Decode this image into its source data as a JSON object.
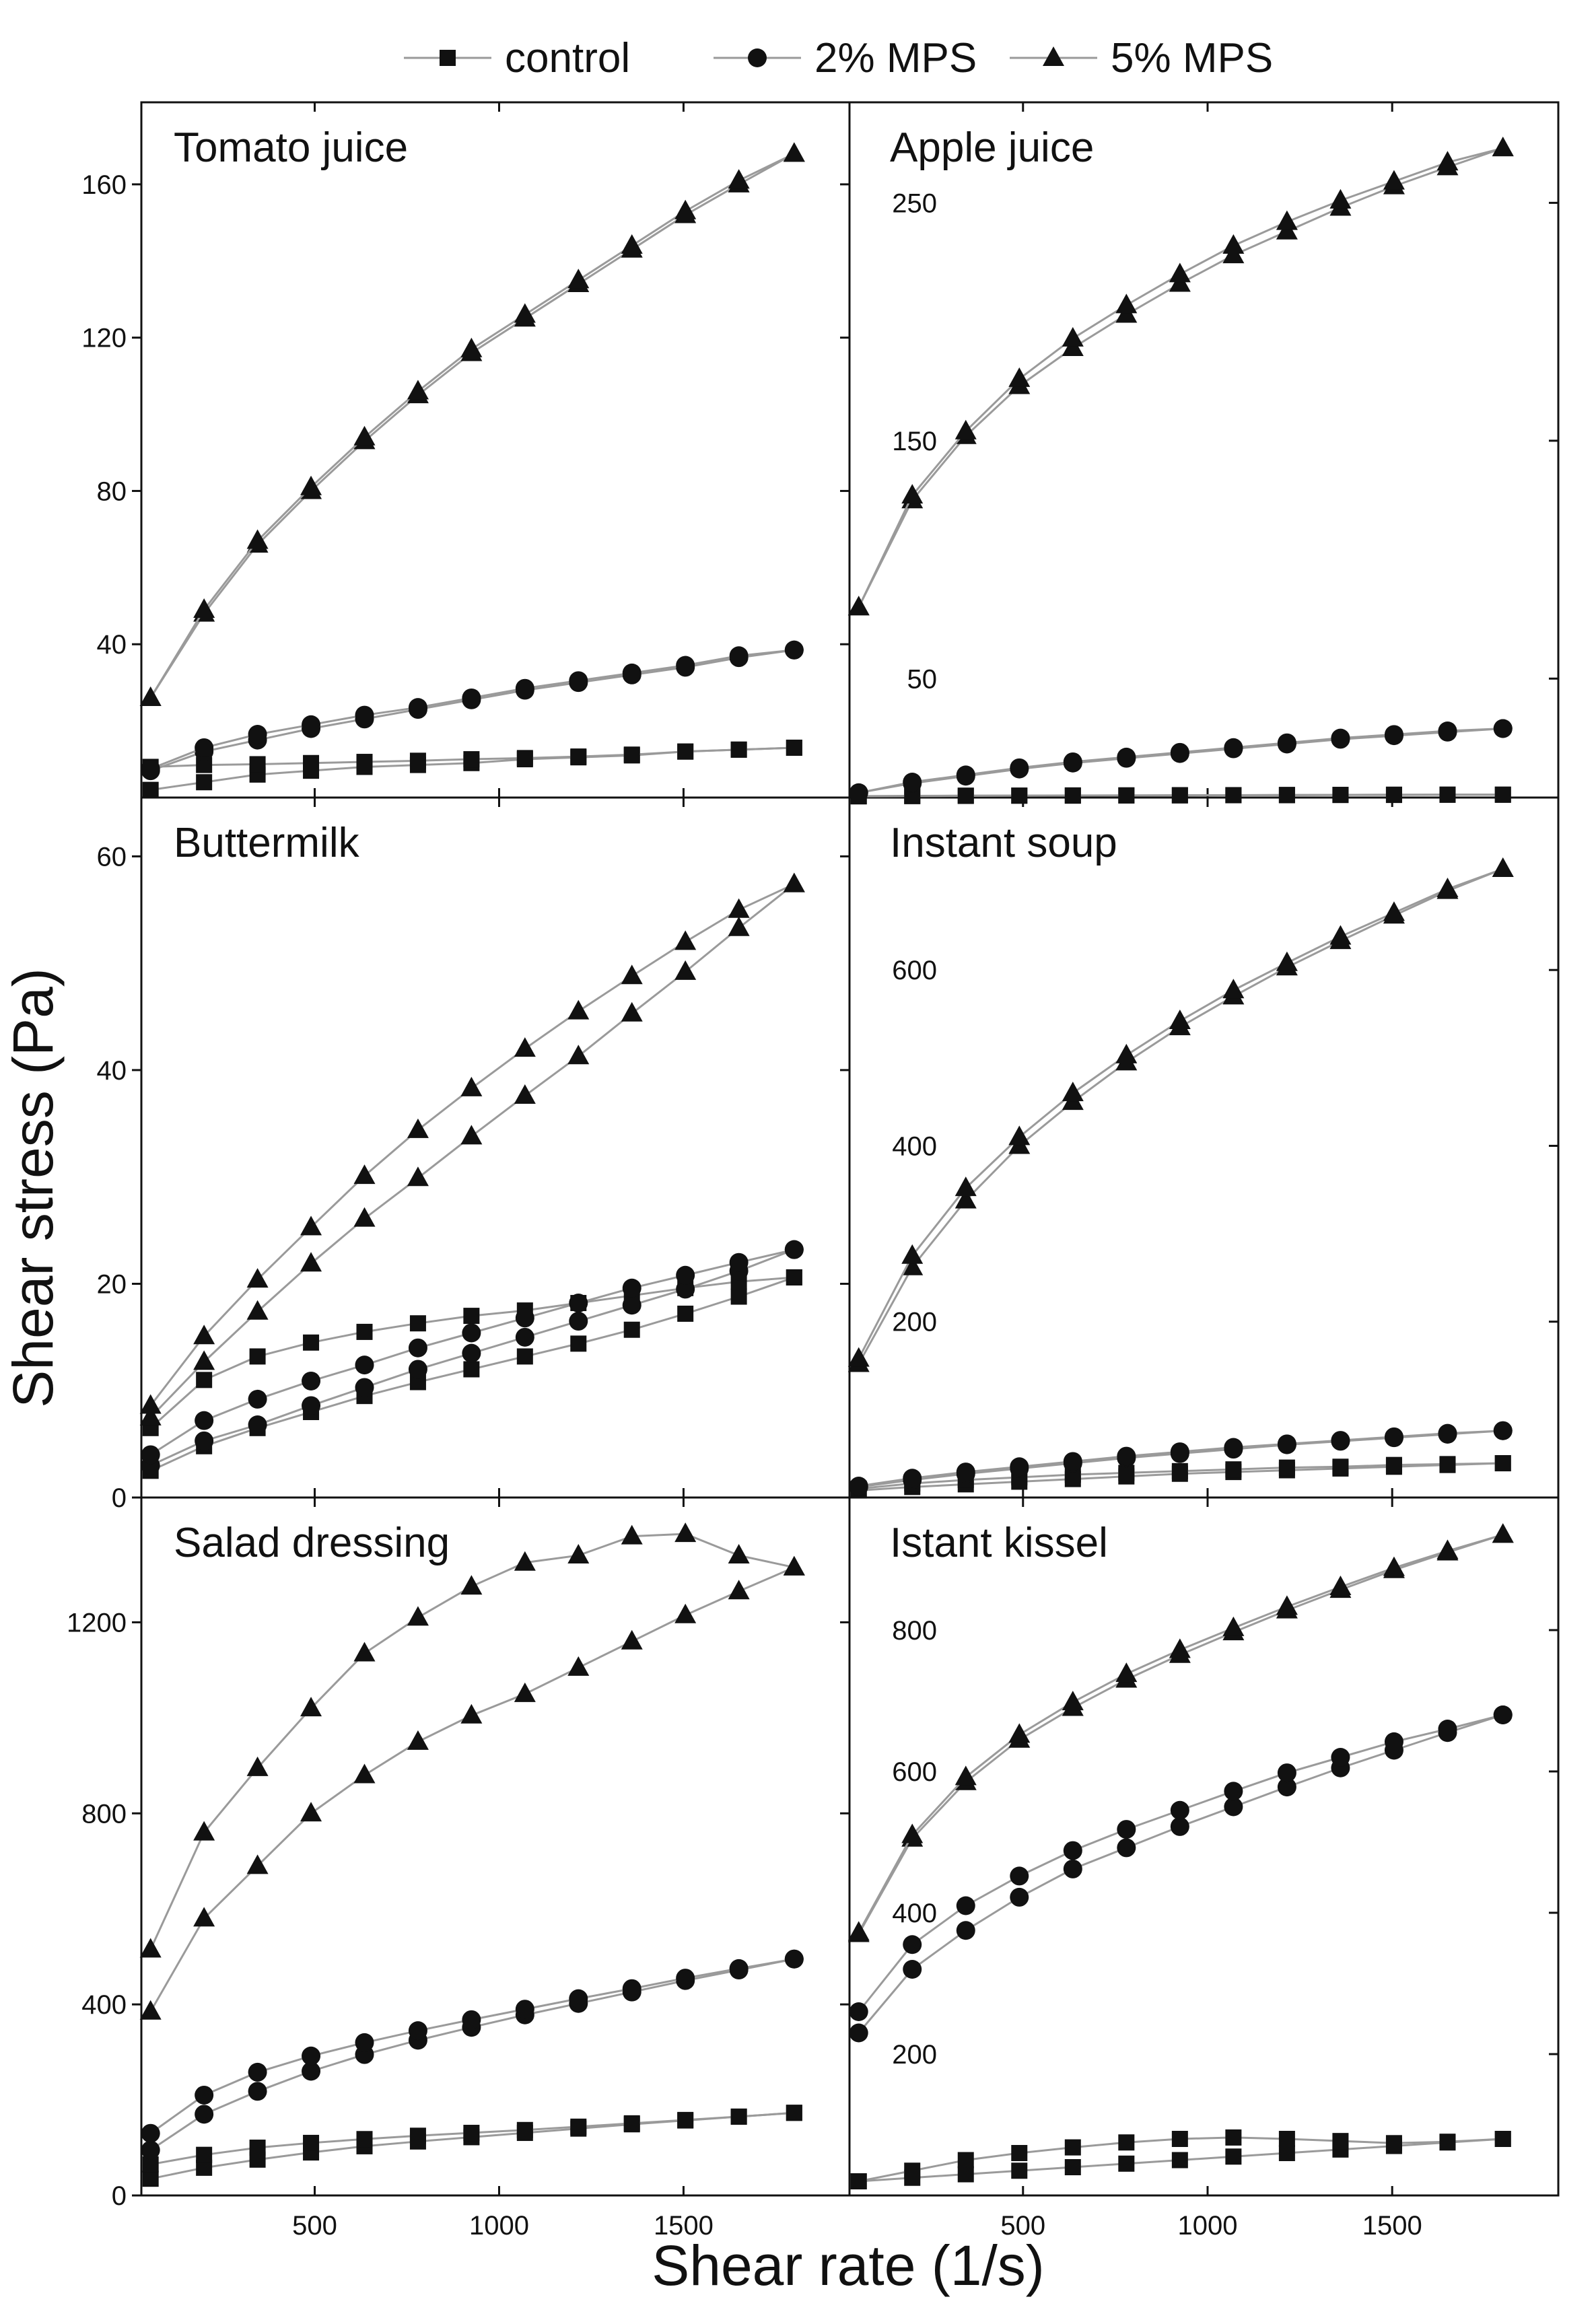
{
  "colors": {
    "ink": "#111111",
    "line": "#9a9a9a",
    "background": "#ffffff"
  },
  "chart_data": {
    "type": "line",
    "title": "",
    "xlabel": "Shear rate (1/s)",
    "ylabel": "Shear stress (Pa)",
    "legend": {
      "position": "top",
      "entries": [
        {
          "label": "control",
          "marker": "square"
        },
        {
          "label": "2% MPS",
          "marker": "circle"
        },
        {
          "label": "5% MPS",
          "marker": "triangle"
        }
      ]
    },
    "x_ticks": [
      500,
      1000,
      1500
    ],
    "x_tick_labels": [
      "500",
      "1000",
      "1500"
    ],
    "panels": [
      {
        "title": "Tomato juice",
        "xlim": [
          30,
          1950
        ],
        "ylim": [
          0,
          180
        ],
        "y_ticks": [
          40,
          80,
          120,
          160
        ],
        "y_tick_labels": [
          "40",
          "80",
          "120",
          "160"
        ],
        "series": [
          {
            "name": "control",
            "marker": "square",
            "x": [
              55,
              200,
              345,
              490,
              635,
              780,
              925,
              1070,
              1215,
              1360,
              1505,
              1650,
              1800
            ],
            "up": [
              2,
              4,
              6,
              7,
              8,
              8.5,
              9,
              10,
              10.5,
              11,
              12,
              12.5,
              13
            ],
            "down": [
              8,
              8.5,
              8.7,
              9,
              9.3,
              9.6,
              10,
              10.3,
              10.7,
              11.2,
              12,
              12.5,
              13
            ]
          },
          {
            "name": "2% MPS",
            "marker": "circle",
            "x": [
              55,
              200,
              345,
              490,
              635,
              780,
              925,
              1070,
              1215,
              1360,
              1505,
              1650,
              1800
            ],
            "up": [
              7,
              12,
              15,
              18,
              20.5,
              23,
              25.5,
              28,
              30,
              32,
              34,
              36.5,
              38.5
            ],
            "down": [
              7.5,
              13,
              16.5,
              19,
              21.5,
              23.5,
              26,
              28.5,
              30.5,
              32.5,
              34.5,
              37,
              38.5
            ]
          },
          {
            "name": "5% MPS",
            "marker": "triangle",
            "x": [
              55,
              200,
              345,
              490,
              635,
              780,
              925,
              1070,
              1215,
              1360,
              1505,
              1650,
              1800
            ],
            "up": [
              26,
              48,
              66,
              80,
              93,
              105,
              116,
              125,
              134,
              143,
              152,
              160,
              168
            ],
            "down": [
              26,
              49,
              67,
              81,
              94,
              106,
              117,
              126,
              135,
              144,
              153,
              161,
              168
            ]
          }
        ]
      },
      {
        "title": "Apple juice",
        "xlim": [
          30,
          1950
        ],
        "ylim": [
          0,
          290
        ],
        "y_ticks": [
          50,
          150,
          250
        ],
        "y_tick_labels": [
          "50",
          "150",
          "250"
        ],
        "series": [
          {
            "name": "control",
            "marker": "square",
            "x": [
              55,
              200,
              345,
              490,
              635,
              780,
              925,
              1070,
              1215,
              1360,
              1505,
              1650,
              1800
            ],
            "up": [
              0.5,
              0.6,
              0.7,
              0.8,
              0.8,
              0.9,
              0.9,
              1,
              1,
              1.1,
              1.1,
              1.2,
              1.2
            ],
            "down": [
              0.6,
              0.7,
              0.8,
              0.8,
              0.9,
              0.9,
              1,
              1,
              1.1,
              1.1,
              1.2,
              1.2,
              1.2
            ]
          },
          {
            "name": "2% MPS",
            "marker": "circle",
            "x": [
              55,
              200,
              345,
              490,
              635,
              780,
              925,
              1070,
              1215,
              1360,
              1505,
              1650,
              1800
            ],
            "up": [
              2,
              6,
              9,
              12,
              14.5,
              16.5,
              18.5,
              20.5,
              22.5,
              24.5,
              26,
              27.5,
              29
            ],
            "down": [
              2,
              6.5,
              9.5,
              12.5,
              15,
              17,
              19,
              21,
              23,
              25,
              26.5,
              28,
              29
            ]
          },
          {
            "name": "5% MPS",
            "marker": "triangle",
            "x": [
              55,
              200,
              345,
              490,
              635,
              780,
              925,
              1070,
              1215,
              1360,
              1505,
              1650,
              1800
            ],
            "up": [
              80,
              125,
              152,
              173,
              189,
              203,
              216,
              228,
              238,
              248,
              257,
              265,
              273
            ],
            "down": [
              80,
              127,
              154,
              176,
              193,
              207,
              220,
              232,
              242,
              251,
              259,
              267,
              273
            ]
          }
        ]
      },
      {
        "title": "Buttermilk",
        "xlim": [
          30,
          1950
        ],
        "ylim": [
          0,
          65
        ],
        "y_ticks": [
          0,
          20,
          40,
          60
        ],
        "y_tick_labels": [
          "0",
          "20",
          "40",
          "60"
        ],
        "series": [
          {
            "name": "control",
            "marker": "square",
            "x": [
              55,
              200,
              345,
              490,
              635,
              780,
              925,
              1070,
              1215,
              1360,
              1505,
              1650,
              1800
            ],
            "up": [
              2.5,
              4.8,
              6.5,
              8,
              9.5,
              10.8,
              12,
              13.2,
              14.4,
              15.7,
              17.2,
              18.8,
              20.6
            ],
            "down": [
              6.5,
              11,
              13.2,
              14.5,
              15.5,
              16.3,
              17,
              17.5,
              18.2,
              18.9,
              19.6,
              20.2,
              20.6
            ]
          },
          {
            "name": "2% MPS",
            "marker": "circle",
            "x": [
              55,
              200,
              345,
              490,
              635,
              780,
              925,
              1070,
              1215,
              1360,
              1505,
              1650,
              1800
            ],
            "up": [
              3,
              5.3,
              6.8,
              8.6,
              10.3,
              12,
              13.5,
              15,
              16.5,
              18,
              19.5,
              21.2,
              23.2
            ],
            "down": [
              4,
              7.2,
              9.2,
              10.9,
              12.4,
              14,
              15.4,
              16.8,
              18.2,
              19.6,
              20.8,
              22,
              23.2
            ]
          },
          {
            "name": "5% MPS",
            "marker": "triangle",
            "x": [
              55,
              200,
              345,
              490,
              635,
              780,
              925,
              1070,
              1215,
              1360,
              1505,
              1650,
              1800
            ],
            "up": [
              7.5,
              12.7,
              17.4,
              21.9,
              26.1,
              29.9,
              33.8,
              37.6,
              41.3,
              45.3,
              49.2,
              53.3,
              57.4
            ],
            "down": [
              8.6,
              15.1,
              20.4,
              25.3,
              30.1,
              34.4,
              38.3,
              42.0,
              45.5,
              48.8,
              52.0,
              55.0,
              57.4
            ]
          }
        ]
      },
      {
        "title": "Instant soup",
        "xlim": [
          30,
          1950
        ],
        "ylim": [
          0,
          790
        ],
        "y_ticks": [
          200,
          400,
          600
        ],
        "y_tick_labels": [
          "200",
          "400",
          "600"
        ],
        "series": [
          {
            "name": "control",
            "marker": "square",
            "x": [
              55,
              200,
              345,
              490,
              635,
              780,
              925,
              1070,
              1215,
              1360,
              1505,
              1650,
              1800
            ],
            "up": [
              8,
              12,
              15,
              18,
              21,
              24,
              27,
              29,
              31,
              33,
              35,
              37,
              39
            ],
            "down": [
              10,
              16,
              20,
              23,
              26,
              28,
              30,
              32,
              34,
              35,
              37,
              38,
              39
            ]
          },
          {
            "name": "2% MPS",
            "marker": "circle",
            "x": [
              55,
              200,
              345,
              490,
              635,
              780,
              925,
              1070,
              1215,
              1360,
              1505,
              1650,
              1800
            ],
            "up": [
              12,
              20,
              27,
              33,
              39,
              45,
              50,
              55,
              60,
              64,
              68,
              72,
              76
            ],
            "down": [
              13,
              22,
              29,
              35,
              41,
              47,
              52,
              57,
              61,
              65,
              69,
              73,
              76
            ]
          },
          {
            "name": "5% MPS",
            "marker": "triangle",
            "x": [
              55,
              200,
              345,
              490,
              635,
              780,
              925,
              1070,
              1215,
              1360,
              1505,
              1650,
              1800
            ],
            "up": [
              152,
              262,
              338,
              400,
              450,
              495,
              535,
              570,
              603,
              633,
              662,
              690,
              715
            ],
            "down": [
              158,
              275,
              352,
              410,
              460,
              503,
              542,
              577,
              608,
              638,
              665,
              692,
              715
            ]
          }
        ]
      },
      {
        "title": "Salad dressing",
        "xlim": [
          30,
          1950
        ],
        "ylim": [
          0,
          1450
        ],
        "y_ticks": [
          0,
          400,
          800,
          1200
        ],
        "y_tick_labels": [
          "0",
          "400",
          "800",
          "1200"
        ],
        "series": [
          {
            "name": "control",
            "marker": "square",
            "x": [
              55,
              200,
              345,
              490,
              635,
              780,
              925,
              1070,
              1215,
              1360,
              1505,
              1650,
              1800
            ],
            "up": [
              35,
              58,
              75,
              90,
              103,
              113,
              122,
              131,
              140,
              149,
              157,
              165,
              173
            ],
            "down": [
              65,
              85,
              100,
              110,
              118,
              125,
              131,
              137,
              144,
              151,
              158,
              165,
              173
            ]
          },
          {
            "name": "2% MPS",
            "marker": "circle",
            "x": [
              55,
              200,
              345,
              490,
              635,
              780,
              925,
              1070,
              1215,
              1360,
              1505,
              1650,
              1800
            ],
            "up": [
              95,
              170,
              218,
              260,
              295,
              325,
              352,
              378,
              402,
              426,
              450,
              472,
              495
            ],
            "down": [
              130,
              210,
              258,
              292,
              320,
              345,
              368,
              390,
              412,
              433,
              455,
              475,
              495
            ]
          },
          {
            "name": "5% MPS",
            "marker": "triangle",
            "x": [
              55,
              200,
              345,
              490,
              635,
              780,
              925,
              1070,
              1215,
              1360,
              1505,
              1650,
              1800
            ],
            "up": [
              385,
              580,
              690,
              800,
              880,
              950,
              1005,
              1050,
              1105,
              1160,
              1215,
              1265,
              1315
            ],
            "down": [
              515,
              760,
              895,
              1020,
              1135,
              1210,
              1275,
              1325,
              1340,
              1380,
              1385,
              1340,
              1315
            ]
          }
        ]
      },
      {
        "title": "Istant kissel",
        "xlim": [
          30,
          1950
        ],
        "ylim": [
          0,
          980
        ],
        "y_ticks": [
          200,
          400,
          600,
          800
        ],
        "y_tick_labels": [
          "200",
          "400",
          "600",
          "800"
        ],
        "series": [
          {
            "name": "control",
            "marker": "square",
            "x": [
              55,
              200,
              345,
              490,
              635,
              780,
              925,
              1070,
              1215,
              1360,
              1505,
              1650,
              1800
            ],
            "up": [
              20,
              25,
              30,
              35,
              40,
              45,
              50,
              55,
              60,
              65,
              70,
              75,
              80
            ],
            "down": [
              20,
              35,
              50,
              60,
              68,
              75,
              80,
              82,
              80,
              77,
              74,
              76,
              80
            ]
          },
          {
            "name": "2% MPS",
            "marker": "circle",
            "x": [
              55,
              200,
              345,
              490,
              635,
              780,
              925,
              1070,
              1215,
              1360,
              1505,
              1650,
              1800
            ],
            "up": [
              230,
              320,
              375,
              422,
              462,
              492,
              522,
              550,
              578,
              605,
              630,
              655,
              680
            ],
            "down": [
              260,
              355,
              410,
              452,
              488,
              518,
              545,
              572,
              598,
              620,
              642,
              660,
              680
            ]
          },
          {
            "name": "5% MPS",
            "marker": "triangle",
            "x": [
              55,
              200,
              345,
              490,
              635,
              780,
              925,
              1070,
              1215,
              1360,
              1505,
              1650,
              1800
            ],
            "up": [
              370,
              505,
              585,
              645,
              690,
              730,
              765,
              797,
              828,
              857,
              885,
              910,
              935
            ],
            "down": [
              372,
              510,
              592,
              652,
              698,
              738,
              772,
              803,
              833,
              861,
              888,
              912,
              935
            ]
          }
        ]
      }
    ]
  }
}
